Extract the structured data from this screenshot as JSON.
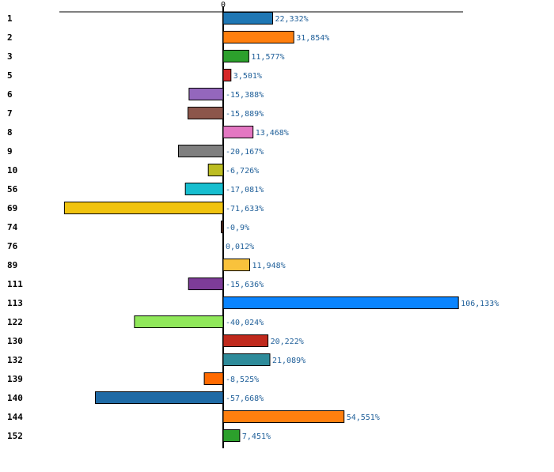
{
  "chart_data": {
    "type": "bar",
    "orientation": "horizontal",
    "title": "",
    "xlabel": "",
    "ylabel": "",
    "zero_tick_label": "0",
    "xlim": [
      -73.5,
      109.0
    ],
    "grid": false,
    "legend": "none",
    "categories": [
      "1",
      "2",
      "3",
      "5",
      "6",
      "7",
      "8",
      "9",
      "10",
      "56",
      "69",
      "74",
      "76",
      "89",
      "111",
      "113",
      "122",
      "130",
      "132",
      "139",
      "140",
      "144",
      "152"
    ],
    "values": [
      22.332,
      31.854,
      11.577,
      3.501,
      -15.388,
      -15.889,
      13.468,
      -20.167,
      -6.726,
      -17.081,
      -71.633,
      -0.9,
      0.012,
      11.948,
      -15.636,
      106.133,
      -40.024,
      20.222,
      21.089,
      -8.525,
      -57.668,
      54.551,
      7.451
    ],
    "value_labels": [
      "22,332%",
      "31,854%",
      "11,577%",
      "3,501%",
      "-15,388%",
      "-15,889%",
      "13,468%",
      "-20,167%",
      "-6,726%",
      "-17,081%",
      "-71,633%",
      "-0,9%",
      "0,012%",
      "11,948%",
      "-15,636%",
      "106,133%",
      "-40,024%",
      "20,222%",
      "21,089%",
      "-8,525%",
      "-57,668%",
      "54,551%",
      "7,451%"
    ],
    "colors": [
      "#1f77b4",
      "#ff7f0e",
      "#2ca02c",
      "#d62728",
      "#9467bd",
      "#8c564b",
      "#e377c2",
      "#7f7f7f",
      "#bcbd22",
      "#17becf",
      "#f0c30f",
      "#5a2a1a",
      "#d0d0d0",
      "#f9c23c",
      "#7d3c98",
      "#0a84ff",
      "#90e85a",
      "#c0291c",
      "#2e8b9a",
      "#ff6a00",
      "#1f6aa5",
      "#ff7f0e",
      "#2ca02c"
    ]
  }
}
